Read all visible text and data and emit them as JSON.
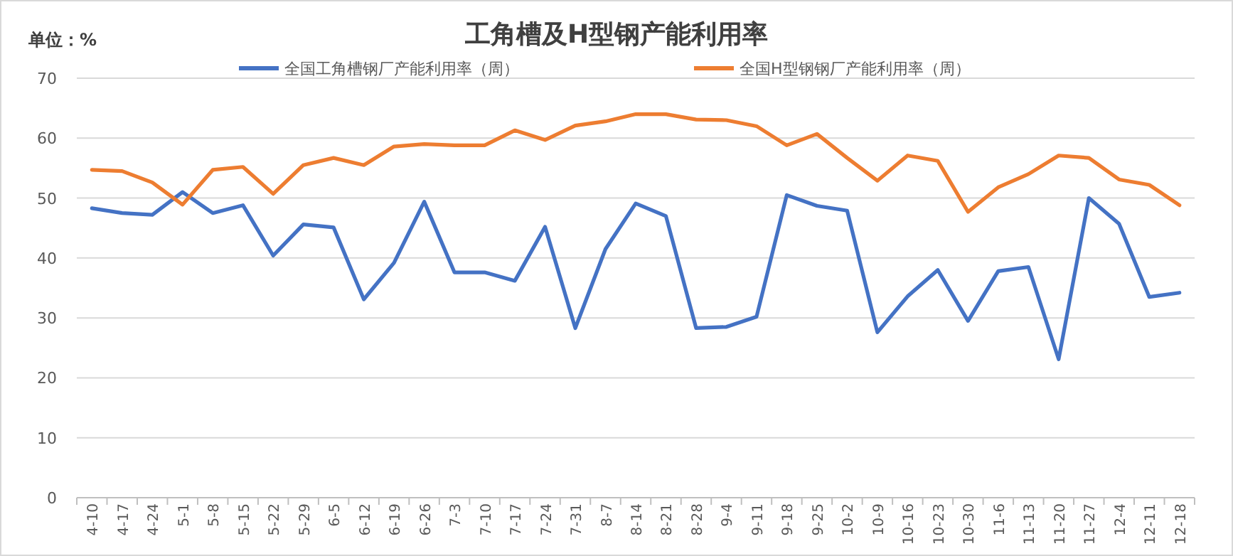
{
  "chart_data": {
    "type": "line",
    "title": "工角槽及H型钢产能利用率",
    "annotations": [
      "单位：%"
    ],
    "categories": [
      "4-10",
      "4-17",
      "4-24",
      "5-1",
      "5-8",
      "5-15",
      "5-22",
      "5-29",
      "6-5",
      "6-12",
      "6-19",
      "6-26",
      "7-3",
      "7-10",
      "7-17",
      "7-24",
      "7-31",
      "8-7",
      "8-14",
      "8-21",
      "8-28",
      "9-4",
      "9-11",
      "9-18",
      "9-25",
      "10-2",
      "10-9",
      "10-16",
      "10-23",
      "10-30",
      "11-6",
      "11-13",
      "11-20",
      "11-27",
      "12-4",
      "12-11",
      "12-18"
    ],
    "series": [
      {
        "name": "全国工角槽钢厂产能利用率（周）",
        "color": "#4472c4",
        "values": [
          48.3,
          47.5,
          47.2,
          51,
          47.5,
          48.8,
          40.4,
          45.6,
          45.1,
          33.1,
          39.2,
          49.4,
          37.6,
          37.6,
          36.2,
          45.2,
          28.3,
          41.5,
          49.1,
          47,
          28.3,
          28.5,
          30.2,
          50.5,
          48.7,
          47.9,
          27.6,
          33.6,
          38,
          29.5,
          37.8,
          38.5,
          23.1,
          50,
          45.7,
          33.5,
          34.2
        ]
      },
      {
        "name": "全国H型钢钢厂产能利用率（周）",
        "color": "#ed7d31",
        "values": [
          54.7,
          54.5,
          52.6,
          48.9,
          54.7,
          55.2,
          50.7,
          55.5,
          56.7,
          55.5,
          58.6,
          59,
          58.8,
          58.8,
          61.3,
          59.7,
          62.1,
          62.8,
          64,
          64,
          63.1,
          63,
          62,
          58.8,
          60.7,
          56.7,
          52.9,
          57.1,
          56.2,
          47.7,
          51.8,
          54,
          57.1,
          56.7,
          53.1,
          52.2,
          48.8
        ]
      }
    ],
    "ylim": [
      0,
      70
    ],
    "yticks": [
      0,
      10,
      20,
      30,
      40,
      50,
      60,
      70
    ],
    "grid": "y",
    "legend": "top",
    "marker": "none",
    "line_style": "solid"
  }
}
